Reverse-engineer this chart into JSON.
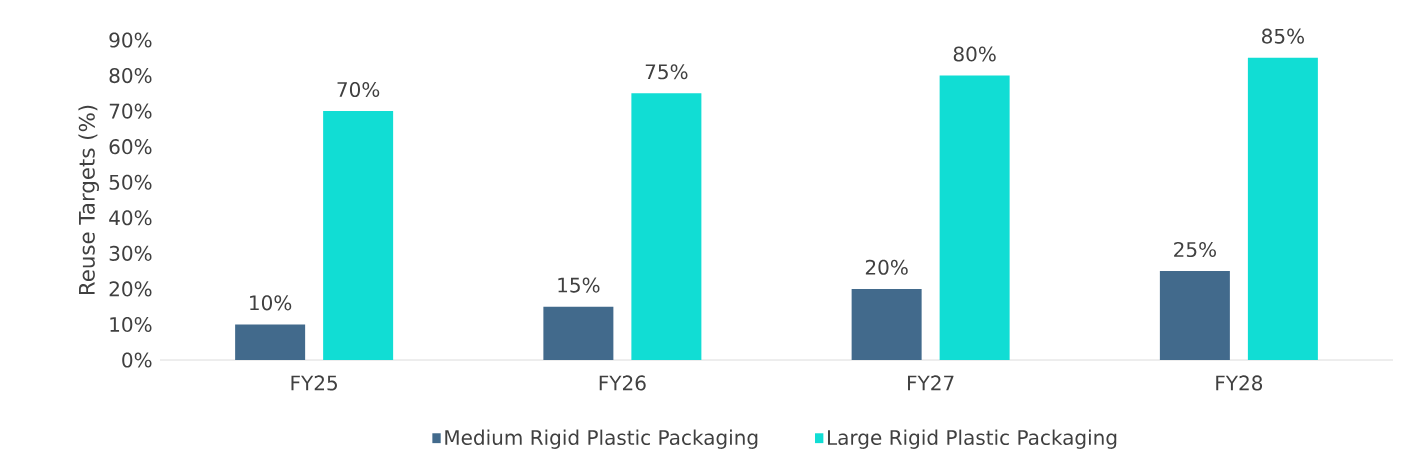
{
  "chart_data": {
    "type": "bar",
    "ylabel": "Reuse Targets (%)",
    "categories": [
      "FY25",
      "FY26",
      "FY27",
      "FY28"
    ],
    "series": [
      {
        "name": "Medium Rigid Plastic Packaging",
        "color": "#426a8c",
        "values": [
          10,
          15,
          20,
          25
        ],
        "value_labels": [
          "10%",
          "15%",
          "20%",
          "25%"
        ]
      },
      {
        "name": "Large Rigid Plastic Packaging",
        "color": "#11ddd4",
        "values": [
          70,
          75,
          80,
          85
        ],
        "value_labels": [
          "70%",
          "75%",
          "80%",
          "85%"
        ]
      }
    ],
    "ylim": [
      0,
      90
    ],
    "yticks": [
      {
        "value": 0,
        "label": "0%"
      },
      {
        "value": 10,
        "label": "10%"
      },
      {
        "value": 20,
        "label": "20%"
      },
      {
        "value": 30,
        "label": "30%"
      },
      {
        "value": 40,
        "label": "40%"
      },
      {
        "value": 50,
        "label": "50%"
      },
      {
        "value": 60,
        "label": "60%"
      },
      {
        "value": 70,
        "label": "70%"
      },
      {
        "value": 80,
        "label": "80%"
      },
      {
        "value": 90,
        "label": "90%"
      }
    ],
    "grid": false,
    "legend": "bottom"
  }
}
